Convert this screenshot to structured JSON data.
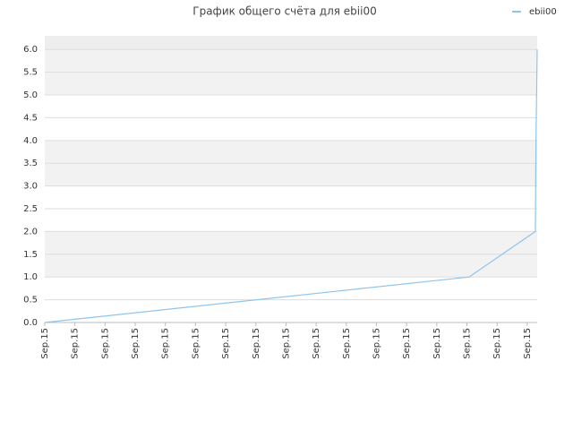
{
  "chart_data": {
    "type": "line",
    "title": "График общего счёта для ebii00",
    "x": [
      0,
      14.07,
      16.27,
      16.29,
      16.33
    ],
    "series": [
      {
        "name": "ebii00",
        "color": "#8ec4ee",
        "values": [
          0,
          1.0,
          2.0,
          4.0,
          6.0
        ]
      }
    ],
    "xlim": [
      0,
      16.33
    ],
    "xticks": [
      {
        "value": 0,
        "label": "Sep.15"
      },
      {
        "value": 1,
        "label": "Sep.15"
      },
      {
        "value": 2,
        "label": "Sep.15"
      },
      {
        "value": 3,
        "label": "Sep.15"
      },
      {
        "value": 4,
        "label": "Sep.15"
      },
      {
        "value": 5,
        "label": "Sep.15"
      },
      {
        "value": 6,
        "label": "Sep.15"
      },
      {
        "value": 7,
        "label": "Sep.15"
      },
      {
        "value": 8,
        "label": "Sep.15"
      },
      {
        "value": 9,
        "label": "Sep.15"
      },
      {
        "value": 10,
        "label": "Sep.15"
      },
      {
        "value": 11,
        "label": "Sep.15"
      },
      {
        "value": 12,
        "label": "Sep.15"
      },
      {
        "value": 13,
        "label": "Sep.15"
      },
      {
        "value": 14,
        "label": "Sep.15"
      },
      {
        "value": 15,
        "label": "Sep.15"
      },
      {
        "value": 16,
        "label": "Sep.15"
      }
    ],
    "ylim": [
      0,
      6.3
    ],
    "yticks": [
      {
        "value": 0,
        "label": "0.0"
      },
      0.5,
      {
        "value": 1,
        "label": "1.0"
      },
      1.5,
      {
        "value": 2,
        "label": "2.0"
      },
      2.5,
      {
        "value": 3,
        "label": "3.0"
      },
      3.5,
      {
        "value": 4,
        "label": "4.0"
      },
      4.5,
      {
        "value": 5,
        "label": "5.0"
      },
      5.5,
      {
        "value": 6,
        "label": "6.0"
      }
    ],
    "grid": true,
    "legend": "top-right"
  }
}
